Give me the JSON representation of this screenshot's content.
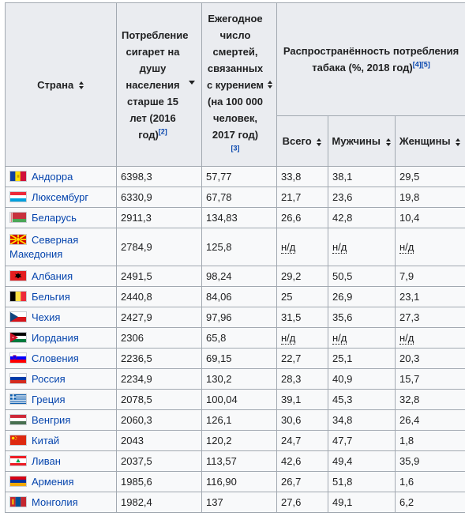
{
  "table": {
    "headers": {
      "country": "Страна",
      "consumption": "Потребление сигарет на душу населения старше 15 лет (2016 год)",
      "consumption_ref": "[2]",
      "deaths": "Ежегодное число смертей, связанных с курением (на 100 000 человек, 2017 год)",
      "deaths_ref": "[3]",
      "prevalence": "Распространённость потребления табака (%, 2018 год)",
      "prevalence_ref": "[4][5]",
      "total": "Всего",
      "men": "Мужчины",
      "women": "Женщины"
    },
    "rows": [
      {
        "country": "Андорра",
        "flag": "andorra-flag",
        "consumption": "6398,3",
        "deaths": "57,77",
        "total": "33,8",
        "men": "38,1",
        "women": "29,5"
      },
      {
        "country": "Люксембург",
        "flag": "luxembourg-flag",
        "consumption": "6330,9",
        "deaths": "67,78",
        "total": "21,7",
        "men": "23,6",
        "women": "19,8"
      },
      {
        "country": "Беларусь",
        "flag": "belarus-flag",
        "consumption": "2911,3",
        "deaths": "134,83",
        "total": "26,6",
        "men": "42,8",
        "women": "10,4"
      },
      {
        "country": "Северная Македония",
        "flag": "north-macedonia-flag",
        "consumption": "2784,9",
        "deaths": "125,8",
        "total": "н/д",
        "men": "н/д",
        "women": "н/д"
      },
      {
        "country": "Албания",
        "flag": "albania-flag",
        "consumption": "2491,5",
        "deaths": "98,24",
        "total": "29,2",
        "men": "50,5",
        "women": "7,9"
      },
      {
        "country": "Бельгия",
        "flag": "belgium-flag",
        "consumption": "2440,8",
        "deaths": "84,06",
        "total": "25",
        "men": "26,9",
        "women": "23,1"
      },
      {
        "country": "Чехия",
        "flag": "czechia-flag",
        "consumption": "2427,9",
        "deaths": "97,96",
        "total": "31,5",
        "men": "35,6",
        "women": "27,3"
      },
      {
        "country": "Иордания",
        "flag": "jordan-flag",
        "consumption": "2306",
        "deaths": "65,8",
        "total": "н/д",
        "men": "н/д",
        "women": "н/д"
      },
      {
        "country": "Словения",
        "flag": "slovenia-flag",
        "consumption": "2236,5",
        "deaths": "69,15",
        "total": "22,7",
        "men": "25,1",
        "women": "20,3"
      },
      {
        "country": "Россия",
        "flag": "russia-flag",
        "consumption": "2234,9",
        "deaths": "130,2",
        "total": "28,3",
        "men": "40,9",
        "women": "15,7"
      },
      {
        "country": "Греция",
        "flag": "greece-flag",
        "consumption": "2078,5",
        "deaths": "100,04",
        "total": "39,1",
        "men": "45,3",
        "women": "32,8"
      },
      {
        "country": "Венгрия",
        "flag": "hungary-flag",
        "consumption": "2060,3",
        "deaths": "126,1",
        "total": "30,6",
        "men": "34,8",
        "women": "26,4"
      },
      {
        "country": "Китай",
        "flag": "china-flag",
        "consumption": "2043",
        "deaths": "120,2",
        "total": "24,7",
        "men": "47,7",
        "women": "1,8"
      },
      {
        "country": "Ливан",
        "flag": "lebanon-flag",
        "consumption": "2037,5",
        "deaths": "113,57",
        "total": "42,6",
        "men": "49,4",
        "women": "35,9"
      },
      {
        "country": "Армения",
        "flag": "armenia-flag",
        "consumption": "1985,6",
        "deaths": "116,90",
        "total": "26,7",
        "men": "51,8",
        "women": "1,6"
      },
      {
        "country": "Монголия",
        "flag": "mongolia-flag",
        "consumption": "1982,4",
        "deaths": "137",
        "total": "27,6",
        "men": "49,1",
        "women": "6,2"
      }
    ]
  }
}
